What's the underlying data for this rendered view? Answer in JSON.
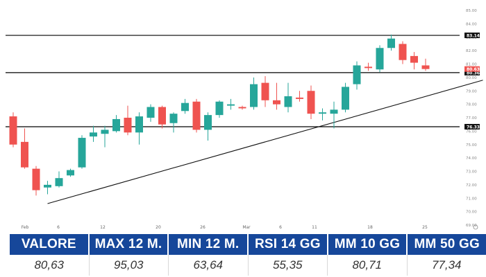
{
  "chart_data": {
    "type": "candlestick",
    "x_tick_labels": [
      "Feb",
      "6",
      "12",
      "20",
      "26",
      "Mar",
      "6",
      "11",
      "18",
      "25"
    ],
    "y_ticks": [
      69.0,
      70.0,
      71.0,
      72.0,
      73.0,
      74.0,
      75.0,
      76.0,
      77.0,
      78.0,
      79.0,
      80.0,
      81.0,
      82.0,
      83.0,
      84.0,
      85.0
    ],
    "ylim": [
      69.0,
      85.0
    ],
    "candles": [
      {
        "o": 77.1,
        "h": 77.4,
        "l": 74.8,
        "c": 75.0
      },
      {
        "o": 75.2,
        "h": 76.2,
        "l": 73.2,
        "c": 73.3
      },
      {
        "o": 73.2,
        "h": 73.4,
        "l": 71.2,
        "c": 71.6
      },
      {
        "o": 71.8,
        "h": 72.3,
        "l": 71.3,
        "c": 72.0
      },
      {
        "o": 71.9,
        "h": 73.0,
        "l": 71.8,
        "c": 72.5
      },
      {
        "o": 72.7,
        "h": 73.2,
        "l": 72.6,
        "c": 73.1
      },
      {
        "o": 73.3,
        "h": 75.7,
        "l": 73.2,
        "c": 75.5
      },
      {
        "o": 75.6,
        "h": 76.4,
        "l": 75.2,
        "c": 75.9
      },
      {
        "o": 75.8,
        "h": 76.4,
        "l": 74.8,
        "c": 76.1
      },
      {
        "o": 76.0,
        "h": 77.2,
        "l": 75.9,
        "c": 76.9
      },
      {
        "o": 77.0,
        "h": 77.9,
        "l": 75.7,
        "c": 75.9
      },
      {
        "o": 75.9,
        "h": 77.4,
        "l": 75.0,
        "c": 77.1
      },
      {
        "o": 77.0,
        "h": 78.0,
        "l": 76.7,
        "c": 77.8
      },
      {
        "o": 77.8,
        "h": 77.9,
        "l": 76.2,
        "c": 76.5
      },
      {
        "o": 76.6,
        "h": 77.4,
        "l": 75.9,
        "c": 77.3
      },
      {
        "o": 77.5,
        "h": 78.4,
        "l": 77.3,
        "c": 78.1
      },
      {
        "o": 78.2,
        "h": 78.4,
        "l": 75.9,
        "c": 76.1
      },
      {
        "o": 76.1,
        "h": 77.4,
        "l": 75.3,
        "c": 77.2
      },
      {
        "o": 77.2,
        "h": 78.3,
        "l": 77.0,
        "c": 78.2
      },
      {
        "o": 77.9,
        "h": 78.4,
        "l": 77.6,
        "c": 78.0
      },
      {
        "o": 77.8,
        "h": 77.9,
        "l": 77.6,
        "c": 77.7
      },
      {
        "o": 77.8,
        "h": 80.0,
        "l": 77.6,
        "c": 79.5
      },
      {
        "o": 79.6,
        "h": 80.1,
        "l": 77.8,
        "c": 78.3
      },
      {
        "o": 78.3,
        "h": 79.6,
        "l": 77.6,
        "c": 78.0
      },
      {
        "o": 77.8,
        "h": 79.6,
        "l": 77.4,
        "c": 78.6
      },
      {
        "o": 78.5,
        "h": 79.0,
        "l": 78.2,
        "c": 78.4
      },
      {
        "o": 79.0,
        "h": 79.4,
        "l": 76.9,
        "c": 77.3
      },
      {
        "o": 77.3,
        "h": 77.7,
        "l": 76.8,
        "c": 77.4
      },
      {
        "o": 77.3,
        "h": 78.2,
        "l": 76.2,
        "c": 77.6
      },
      {
        "o": 77.6,
        "h": 79.6,
        "l": 77.4,
        "c": 79.3
      },
      {
        "o": 79.5,
        "h": 81.2,
        "l": 79.1,
        "c": 80.9
      },
      {
        "o": 80.8,
        "h": 81.1,
        "l": 80.5,
        "c": 80.7
      },
      {
        "o": 80.6,
        "h": 82.4,
        "l": 80.4,
        "c": 82.2
      },
      {
        "o": 82.2,
        "h": 83.2,
        "l": 82.0,
        "c": 82.9
      },
      {
        "o": 82.5,
        "h": 82.7,
        "l": 81.0,
        "c": 81.3
      },
      {
        "o": 81.6,
        "h": 81.9,
        "l": 80.6,
        "c": 81.1
      },
      {
        "o": 80.9,
        "h": 81.4,
        "l": 80.5,
        "c": 80.63
      }
    ],
    "horizontal_levels": [
      {
        "value": 83.14,
        "label": "83.14"
      },
      {
        "value": 80.36,
        "label": "80.36"
      },
      {
        "value": 76.33,
        "label": "76.33"
      }
    ],
    "last_price": {
      "value": 80.63,
      "label": "80.63"
    },
    "trendline": {
      "from": {
        "index": 3,
        "value": 70.6
      },
      "to": {
        "index": 41,
        "value": 79.8
      }
    },
    "colors": {
      "up": "#26a69a",
      "down": "#ef5350",
      "levels": "#000000",
      "price_tag": "#ef5350",
      "label_tag": "#111111"
    },
    "grid": false
  },
  "stats": {
    "headers": [
      "VALORE",
      "MAX 12 M.",
      "MIN 12 M.",
      "RSI 14 GG",
      "MM 10 GG",
      "MM 50 GG"
    ],
    "values": [
      "80,63",
      "95,03",
      "63,64",
      "55,35",
      "80,71",
      "77,34"
    ],
    "header_color": "#16479a"
  }
}
